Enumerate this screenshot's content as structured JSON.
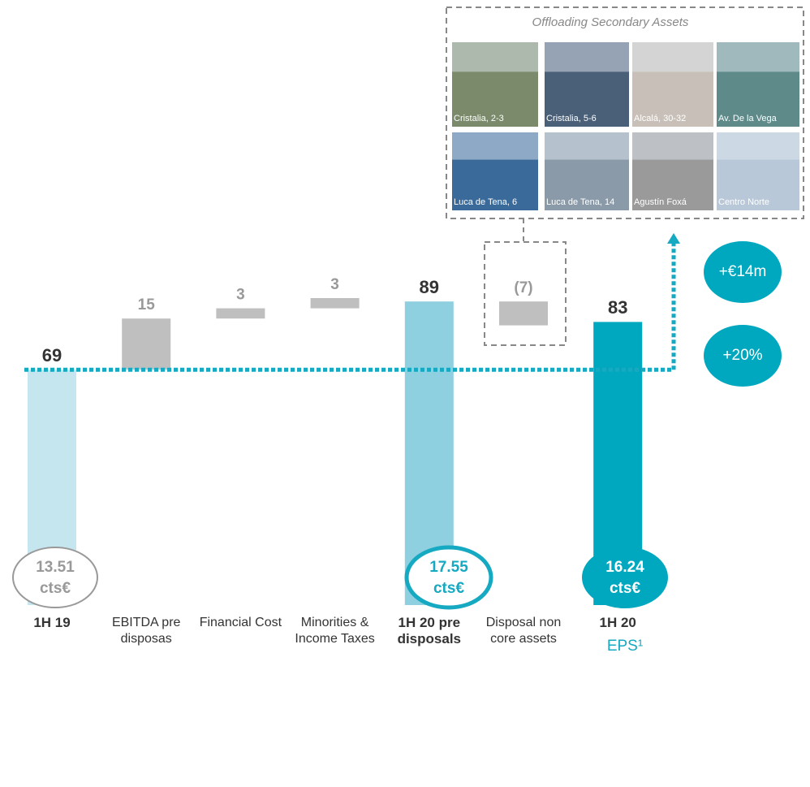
{
  "chart_data": {
    "type": "waterfall",
    "categories": [
      "1H 19",
      "EBITDA pre disposas",
      "Financial Cost",
      "Minorities & Income Taxes",
      "1H 20 pre disposals",
      "Disposal non core assets",
      "1H 20"
    ],
    "values": [
      69,
      15,
      3,
      3,
      89,
      -7,
      83
    ],
    "value_labels": [
      "69",
      "15",
      "3",
      "3",
      "89",
      "(7)",
      "83"
    ],
    "measure": [
      "total",
      "relative",
      "relative",
      "relative",
      "total",
      "relative",
      "total"
    ],
    "colors": [
      "#c5e5ef",
      "#bfbfbf",
      "#bfbfbf",
      "#bfbfbf",
      "#8ecfe0",
      "#bfbfbf",
      "#00a8bf"
    ],
    "ylim": [
      0,
      100
    ]
  },
  "inset": {
    "title": "Offloading Secondary Assets",
    "photos": [
      "Cristalia, 2-3",
      "Cristalia, 5-6",
      "Alcalá, 30-32",
      "Av. De la Vega",
      "Luca de Tena, 6",
      "Luca de Tena, 14",
      "Agustín Foxá",
      "Centro Norte"
    ]
  },
  "badges": [
    "+€14m",
    "+20%"
  ],
  "eps": {
    "label": "EPS¹",
    "items": [
      {
        "value": 13.51,
        "unit": "cts€"
      },
      {
        "value": 17.55,
        "unit": "cts€"
      },
      {
        "value": 16.24,
        "unit": "cts€"
      }
    ]
  }
}
